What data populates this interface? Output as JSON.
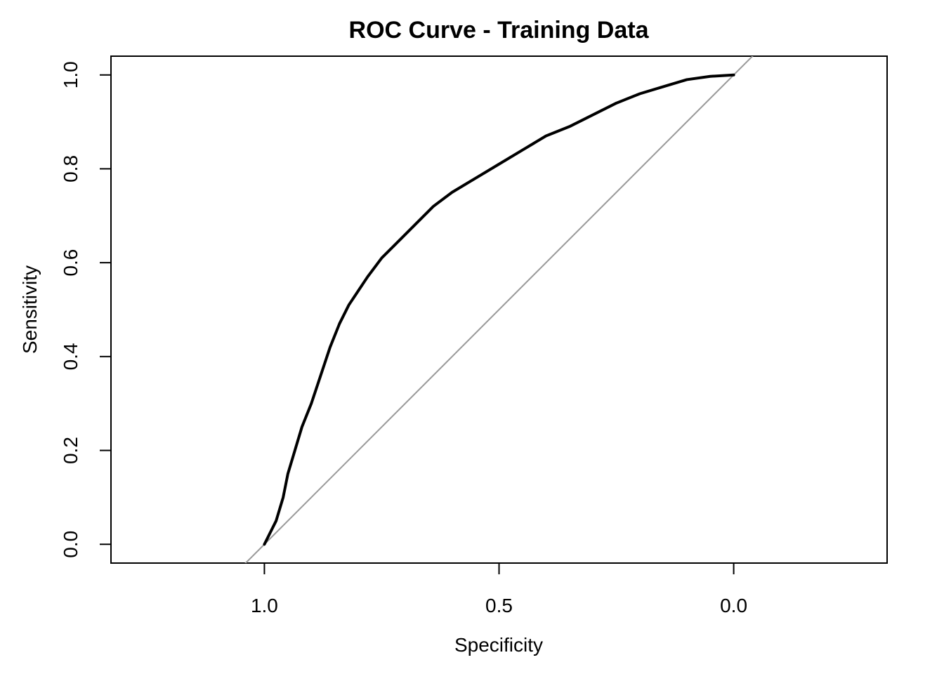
{
  "chart_data": {
    "type": "line",
    "title": "ROC Curve - Training Data",
    "xlabel": "Specificity",
    "ylabel": "Sensitivity",
    "x_reversed": true,
    "xlim": [
      1.3269,
      -0.3269
    ],
    "ylim": [
      -0.04,
      1.04
    ],
    "xticks": [
      "1.0",
      "0.5",
      "0.0"
    ],
    "xtick_values": [
      1.0,
      0.5,
      0.0
    ],
    "yticks": [
      "0.0",
      "0.2",
      "0.4",
      "0.6",
      "0.8",
      "1.0"
    ],
    "ytick_values": [
      0.0,
      0.2,
      0.4,
      0.6,
      0.8,
      1.0
    ],
    "grid": false,
    "reference_line": {
      "name": "",
      "color": "#999999",
      "points": [
        [
          1.0,
          0.0
        ],
        [
          0.0,
          1.0
        ]
      ]
    },
    "series": [
      {
        "name": "",
        "color": "#000000",
        "specificity": [
          1.0,
          0.99,
          0.975,
          0.96,
          0.95,
          0.935,
          0.92,
          0.9,
          0.88,
          0.86,
          0.84,
          0.82,
          0.8,
          0.78,
          0.75,
          0.72,
          0.68,
          0.64,
          0.6,
          0.55,
          0.5,
          0.45,
          0.4,
          0.35,
          0.3,
          0.25,
          0.2,
          0.15,
          0.1,
          0.05,
          0.0
        ],
        "sensitivity": [
          0.0,
          0.02,
          0.05,
          0.1,
          0.15,
          0.2,
          0.25,
          0.3,
          0.36,
          0.42,
          0.47,
          0.51,
          0.54,
          0.57,
          0.61,
          0.64,
          0.68,
          0.72,
          0.75,
          0.78,
          0.81,
          0.84,
          0.87,
          0.89,
          0.915,
          0.94,
          0.96,
          0.975,
          0.99,
          0.997,
          1.0
        ]
      }
    ]
  }
}
